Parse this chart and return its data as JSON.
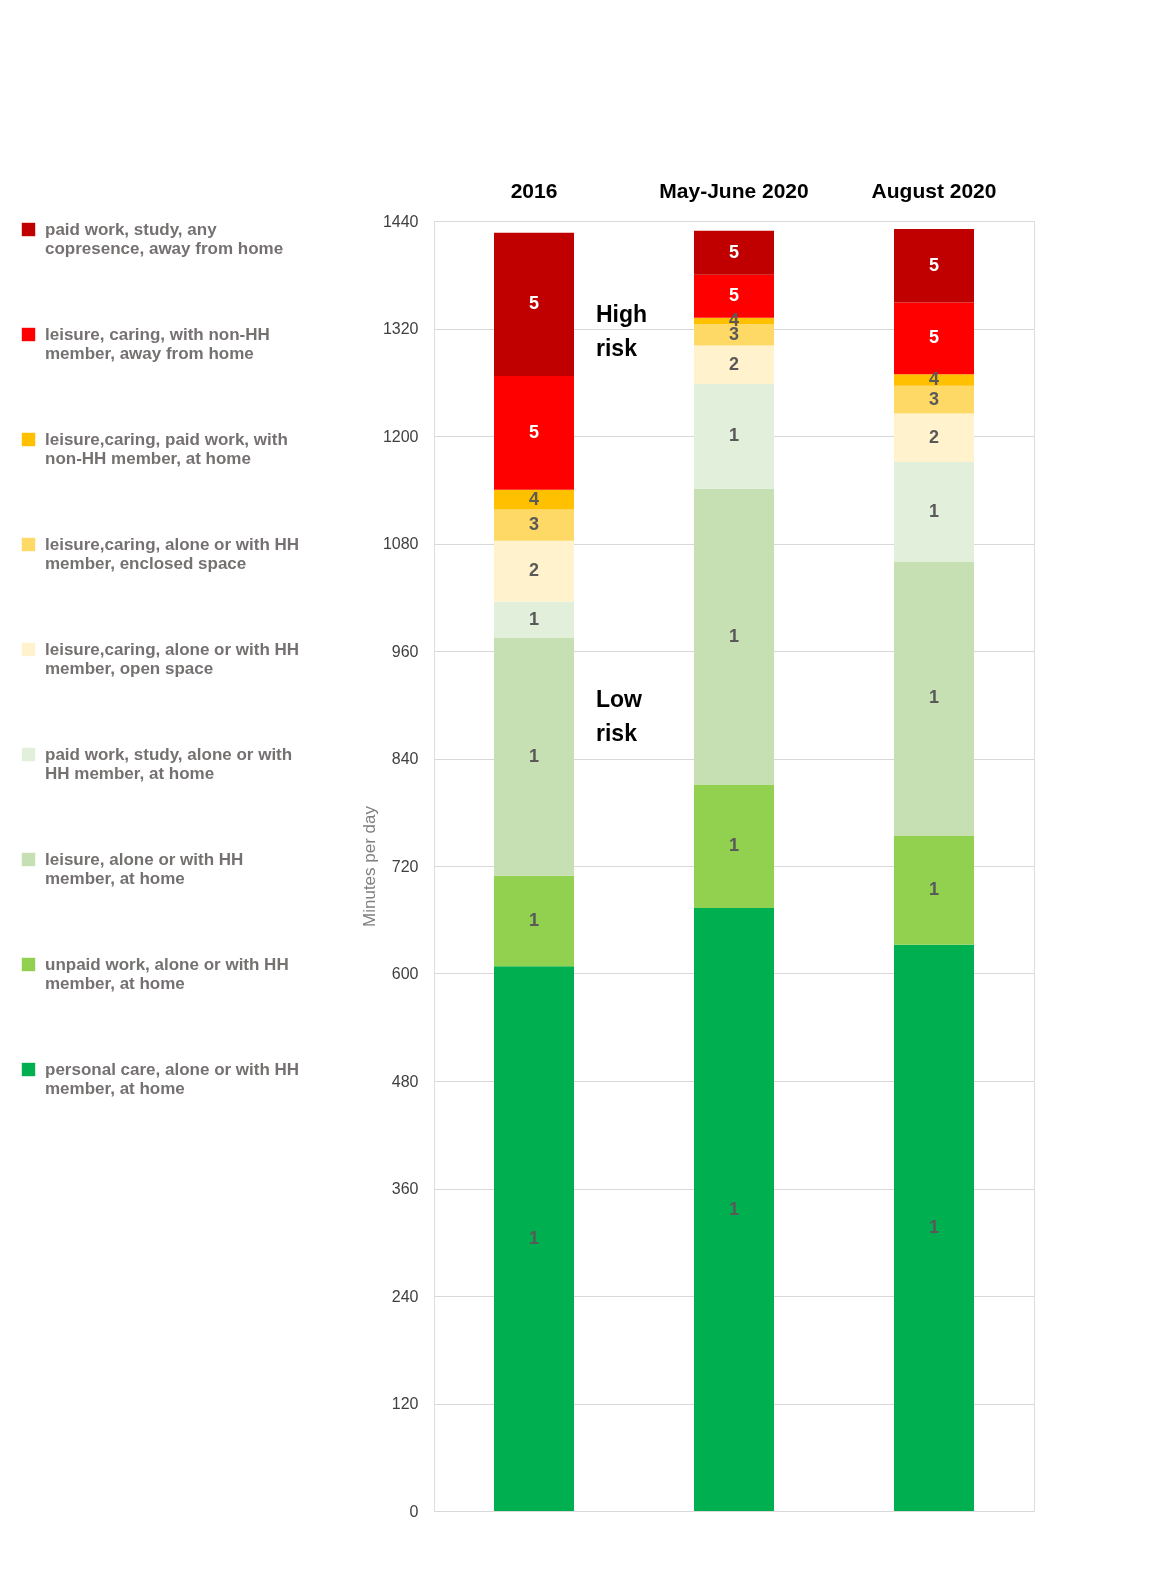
{
  "chart_data": {
    "type": "bar",
    "stacked": true,
    "ylabel": "Minutes per day",
    "categories": [
      "2016",
      "May-June 2020",
      "August 2020"
    ],
    "ylim": [
      0,
      1440
    ],
    "yticks": [
      0,
      120,
      240,
      360,
      480,
      600,
      720,
      840,
      960,
      1080,
      1200,
      1320,
      1440
    ],
    "grid": "y",
    "legend": "left",
    "annotations": [
      "High risk",
      "Low risk",
      "1",
      "1",
      "1",
      "1",
      "2",
      "3",
      "4",
      "5",
      "5",
      "1",
      "1",
      "1",
      "1",
      "2",
      "3",
      "4",
      "5",
      "5",
      "1",
      "1",
      "1",
      "1",
      "2",
      "3",
      "4",
      "5",
      "5"
    ],
    "series": [
      {
        "name": "personal care, alone or with HH member, at home",
        "color": "#00b050",
        "values": [
          608,
          673,
          632
        ]
      },
      {
        "name": "unpaid work, alone or with HH member, at home",
        "color": "#92d050",
        "values": [
          101,
          138,
          122
        ]
      },
      {
        "name": "leisure, alone or with HH member, at home",
        "color": "#c6e0b4",
        "values": [
          266,
          330,
          306
        ]
      },
      {
        "name": "paid work, study, alone or with HH member, at home",
        "color": "#e2efda",
        "values": [
          40,
          117,
          111
        ]
      },
      {
        "name": "leisure,caring, alone or with HH member, open space",
        "color": "#fff2cc",
        "values": [
          68,
          43,
          54
        ]
      },
      {
        "name": "leisure,caring, alone or with HH member, enclosed space",
        "color": "#ffd966",
        "values": [
          35,
          24,
          31
        ]
      },
      {
        "name": "leisure,caring, paid work, with non-HH member, at home",
        "color": "#ffc000",
        "values": [
          22,
          7,
          13
        ]
      },
      {
        "name": "leisure, caring, with non-HH member, away from home",
        "color": "#ff0000",
        "values": [
          127,
          48,
          80
        ]
      },
      {
        "name": "paid work, study, any copresence, away from home",
        "color": "#c00000",
        "values": [
          160,
          49,
          82
        ]
      }
    ]
  }
}
